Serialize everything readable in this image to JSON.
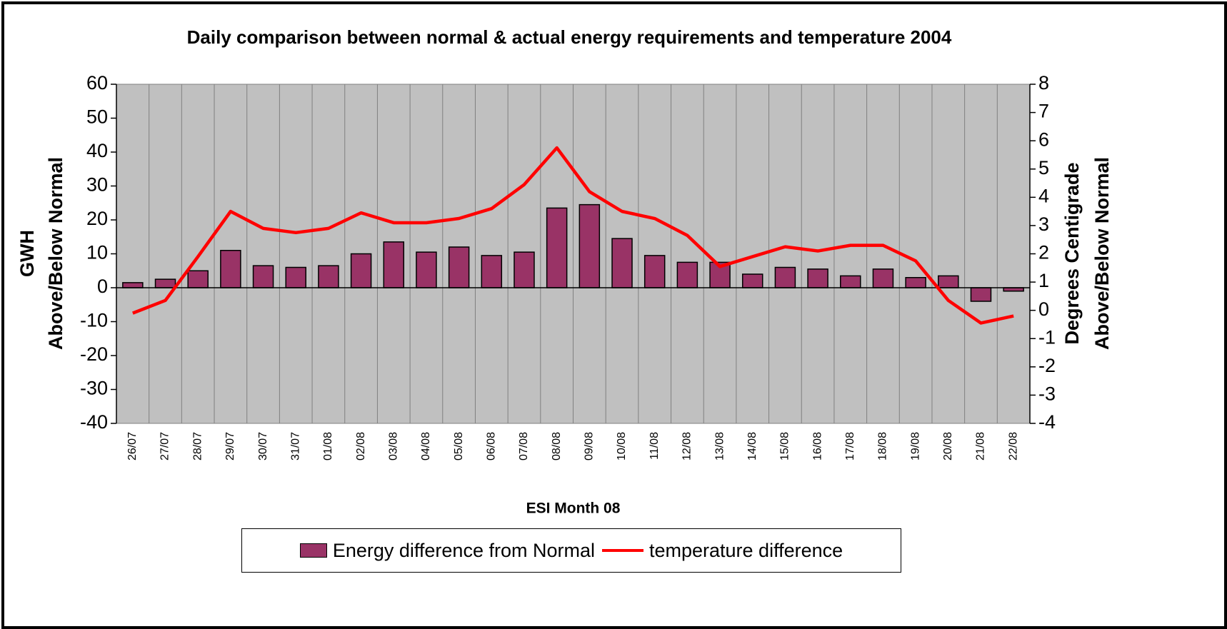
{
  "chart_data": {
    "type": "bar",
    "title": "Daily comparison between normal & actual energy requirements and temperature 2004",
    "x_label": "ESI Month 08",
    "y_label": [
      "GWH",
      "Above/Below Normal"
    ],
    "y2_label": [
      "Degrees Centigrade",
      "Above/Below Normal"
    ],
    "categories": [
      "26/07",
      "27/07",
      "28/07",
      "29/07",
      "30/07",
      "31/07",
      "01/08",
      "02/08",
      "03/08",
      "04/08",
      "05/08",
      "06/08",
      "07/08",
      "08/08",
      "09/08",
      "10/08",
      "11/08",
      "12/08",
      "13/08",
      "14/08",
      "15/08",
      "16/08",
      "17/08",
      "18/08",
      "19/08",
      "20/08",
      "21/08",
      "22/08"
    ],
    "series": [
      {
        "name": "Energy difference from Normal",
        "type": "bar",
        "color": "#993366",
        "values": [
          1.5,
          2.5,
          5,
          11,
          6.5,
          6,
          6.5,
          10,
          13.5,
          10.5,
          12,
          9.5,
          10.5,
          23.5,
          24.5,
          14.5,
          9.5,
          7.5,
          7.5,
          4,
          6,
          5.5,
          3.5,
          5.5,
          3,
          3.5,
          -4,
          -1
        ]
      },
      {
        "name": "temperature difference",
        "type": "line",
        "axis": "y2",
        "color": "#ff0000",
        "values": [
          -0.1,
          0.35,
          1.9,
          3.5,
          2.9,
          2.75,
          2.9,
          3.45,
          3.1,
          3.1,
          3.25,
          3.6,
          4.45,
          5.75,
          4.2,
          3.5,
          3.25,
          2.65,
          1.55,
          1.9,
          2.25,
          2.1,
          2.3,
          2.3,
          1.75,
          0.35,
          -0.45,
          -0.2
        ]
      }
    ],
    "ylim": [
      -40,
      60
    ],
    "yticks": [
      -40,
      -30,
      -20,
      -10,
      0,
      10,
      20,
      30,
      40,
      50,
      60
    ],
    "y2lim": [
      -4,
      8
    ],
    "y2ticks": [
      -4,
      -3,
      -2,
      -1,
      0,
      1,
      2,
      3,
      4,
      5,
      6,
      7,
      8
    ],
    "grid": false
  }
}
